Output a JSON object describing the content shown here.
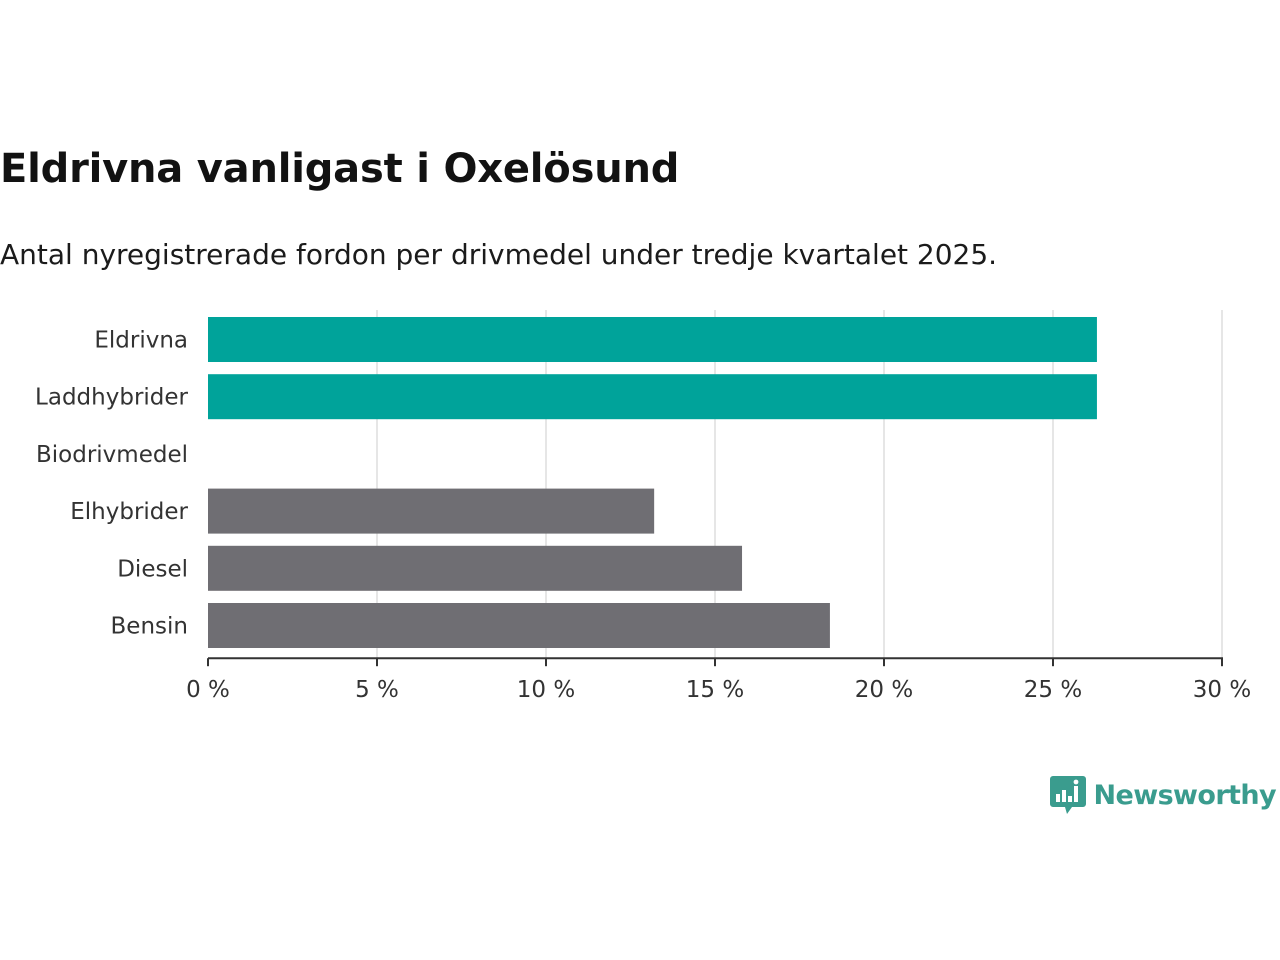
{
  "title": "Eldrivna vanligast i Oxelösund",
  "subtitle": "Antal nyregistrerade fordon per drivmedel under tredje kvartalet 2025.",
  "brand": {
    "name": "Newsworthy",
    "icon": "newsworthy-logo-icon",
    "color": "#3a9c8e"
  },
  "colors": {
    "highlight": "#00a39a",
    "default": "#6f6e73",
    "gridline": "#dddddd",
    "axis": "#333333"
  },
  "chart_data": {
    "type": "bar",
    "orientation": "horizontal",
    "title": "Eldrivna vanligast i Oxelösund",
    "subtitle": "Antal nyregistrerade fordon per drivmedel under tredje kvartalet 2025.",
    "xlabel": "",
    "ylabel": "",
    "unit": "%",
    "xlim": [
      0,
      30
    ],
    "xticks": [
      0,
      5,
      10,
      15,
      20,
      25,
      30
    ],
    "tick_labels": [
      "0 %",
      "5 %",
      "10 %",
      "15 %",
      "20 %",
      "25 %",
      "30 %"
    ],
    "grid": true,
    "categories": [
      "Eldrivna",
      "Laddhybrider",
      "Biodrivmedel",
      "Elhybrider",
      "Diesel",
      "Bensin"
    ],
    "values": [
      26.3,
      26.3,
      0,
      13.2,
      15.8,
      18.4
    ],
    "highlighted": [
      true,
      true,
      false,
      false,
      false,
      false
    ]
  }
}
